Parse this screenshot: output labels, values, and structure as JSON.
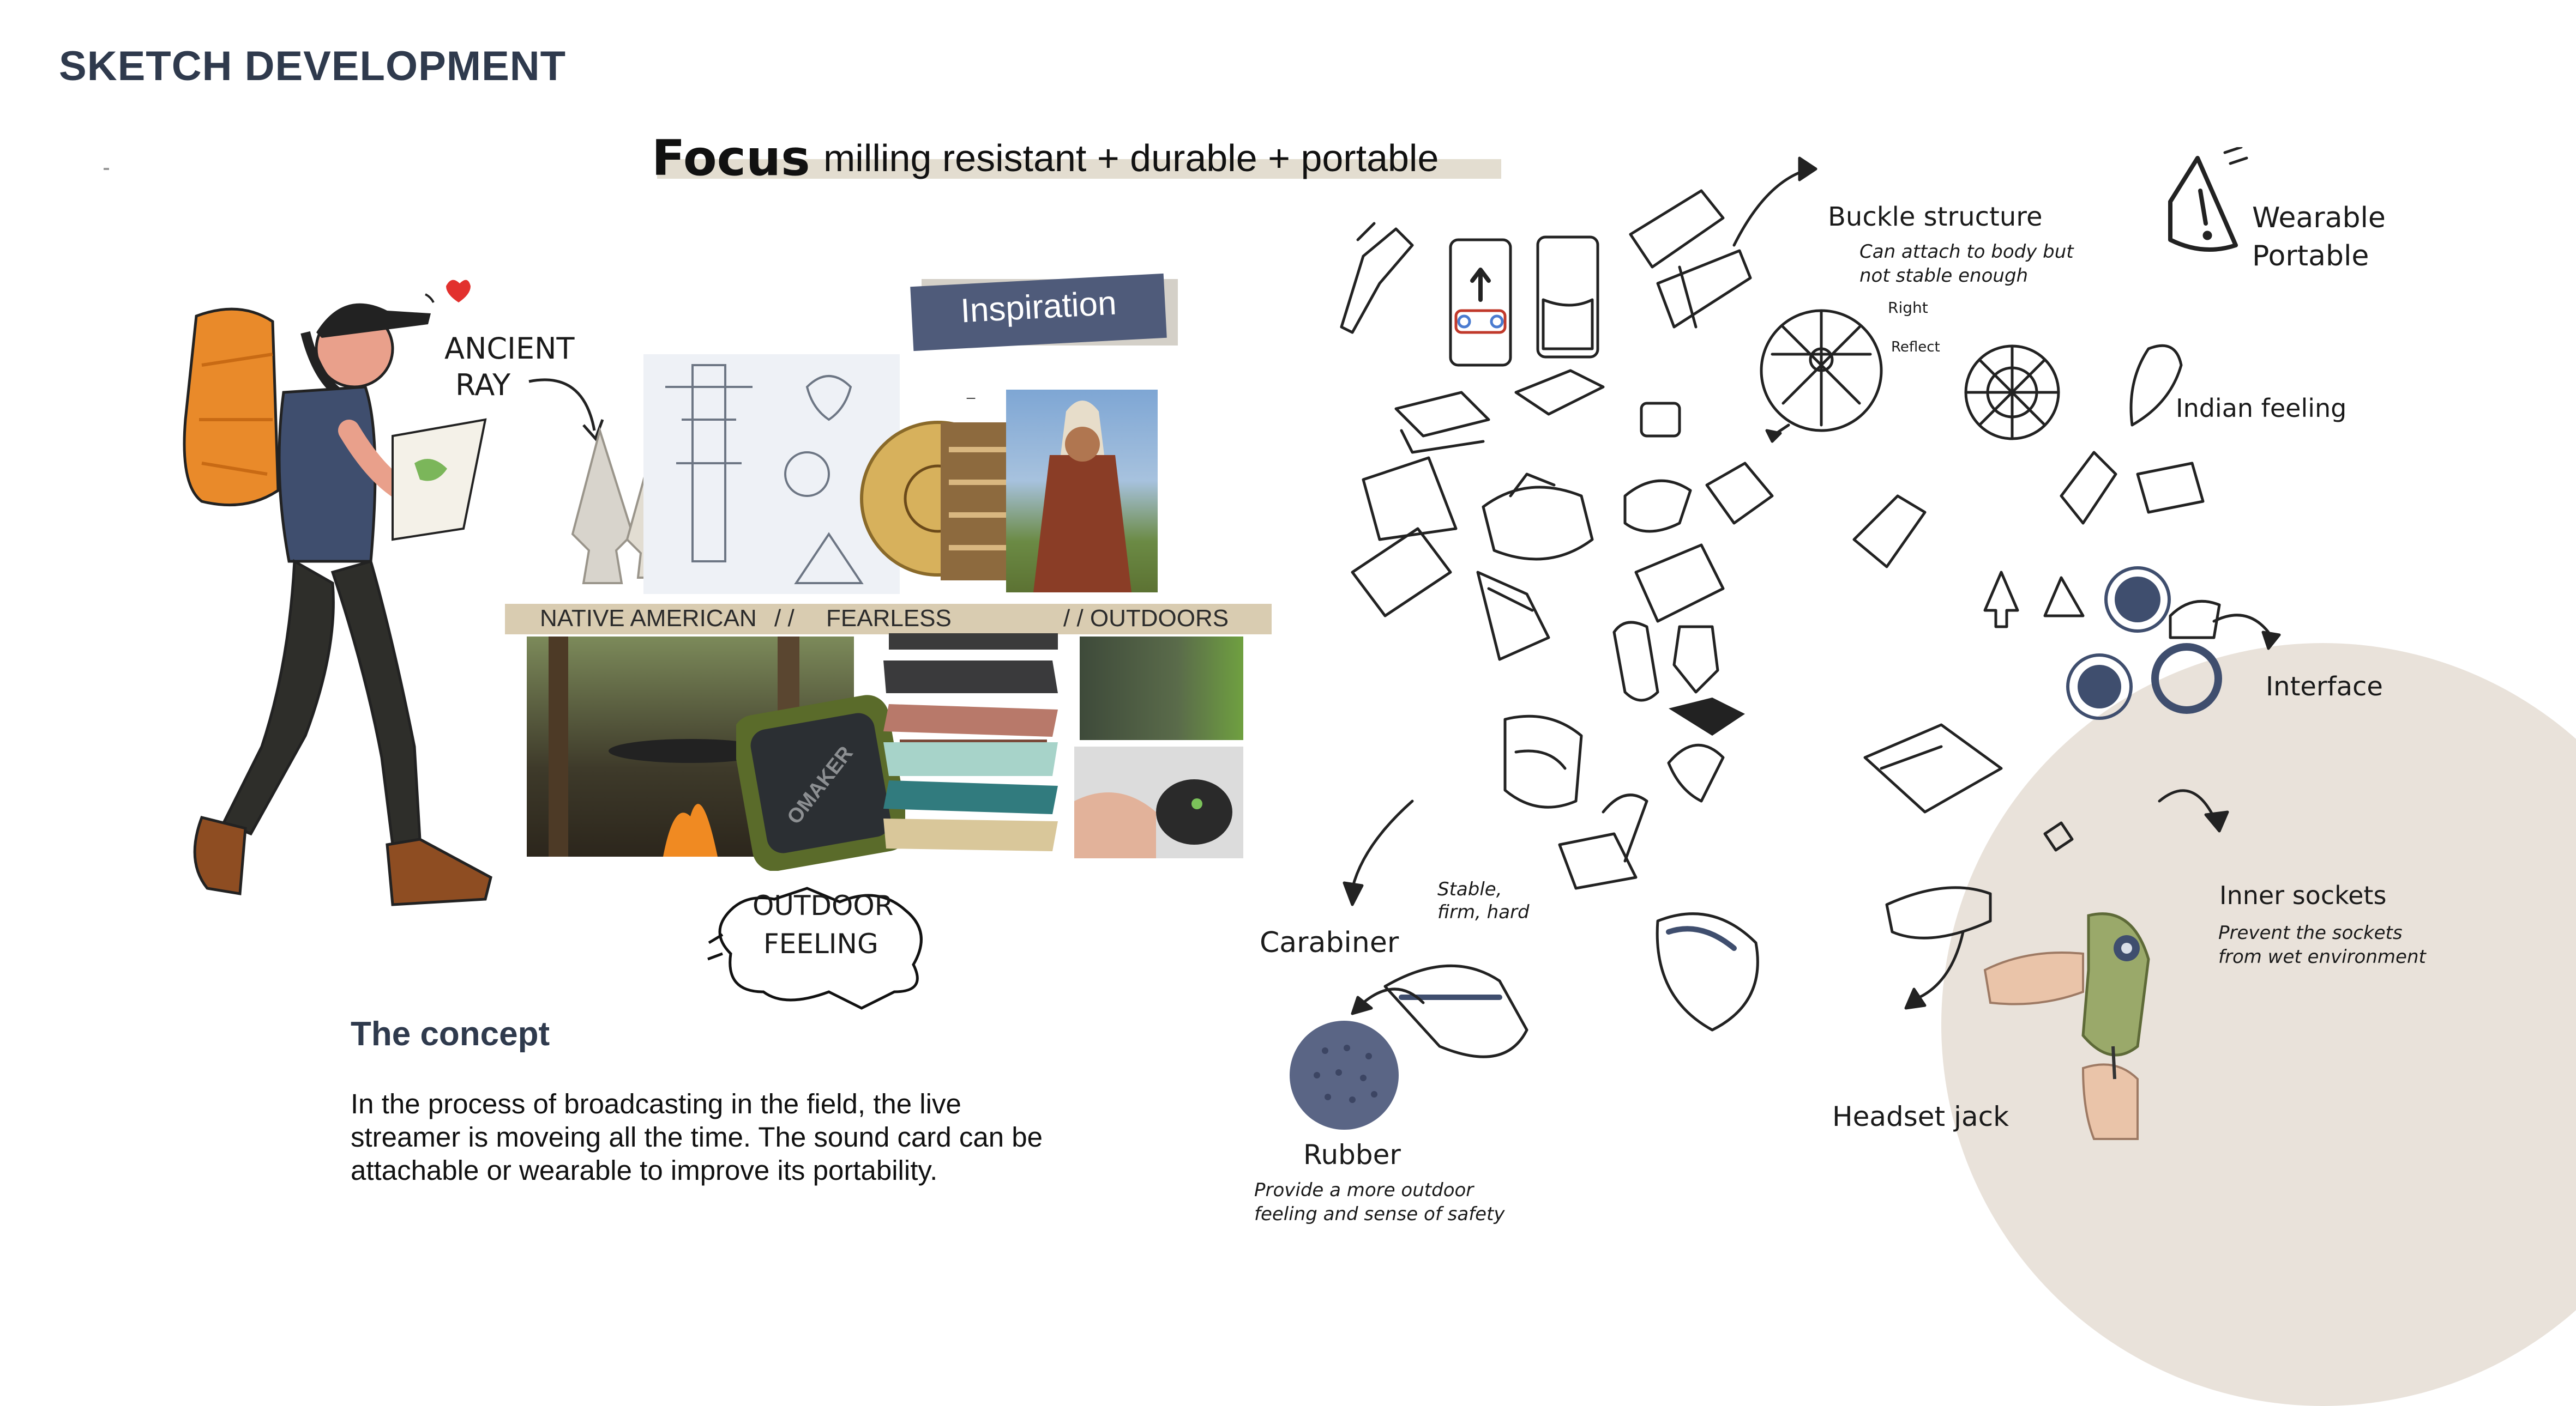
{
  "header": {
    "title": "SKETCH DEVELOPMENT"
  },
  "focus": {
    "label": "Focus",
    "text": "milling resistant + durable + portable"
  },
  "inspiration": {
    "label": "Inspiration",
    "ancient_ray_line1": "ANCIENT",
    "ancient_ray_line2": "RAY",
    "mood_words": [
      "NATIVE AMERICAN",
      "/ /",
      "FEARLESS",
      "/ / OUTDOORS"
    ],
    "outdoor_feeling_line1": "OUTDOOR",
    "outdoor_feeling_line2": "FEELING"
  },
  "concept": {
    "title": "The concept",
    "body": "In the process of broadcasting in the field, the live streamer is moveing all the time. The sound card can be attachable or wearable to improve its portability."
  },
  "speaker_brand": "OMAKER",
  "annotations": {
    "buckle_title": "Buckle structure",
    "buckle_note_1": "Can attach to body but",
    "buckle_note_2": "not stable enough",
    "wearable_1": "Wearable",
    "wearable_2": "Portable",
    "small_note_1": "Right",
    "small_note_2": "Reflect",
    "indian": "Indian feeling",
    "interface": "Interface",
    "inner_title": "Inner sockets",
    "inner_note_1": "Prevent the sockets",
    "inner_note_2": "from wet environment",
    "carabiner": "Carabiner",
    "stable_1": "Stable,",
    "stable_2": "firm, hard",
    "headset": "Headset jack",
    "rubber_title": "Rubber",
    "rubber_note_1": "Provide a more outdoor",
    "rubber_note_2": "feeling and sense of safety"
  },
  "colors": {
    "title": "#2f3a4d",
    "inspiration_box": "#4f5b7a",
    "mood_band": "#d9ccb1",
    "focus_band": "#e3ddd0",
    "accent_orange": "#e98a2a",
    "navy": "#3f4e6e",
    "olive": "#9aa96a",
    "beige_blob": "#e9e2da"
  }
}
